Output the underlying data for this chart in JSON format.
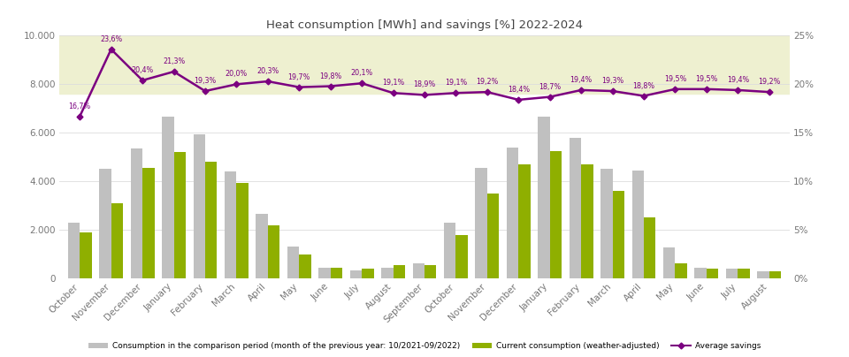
{
  "title": "Heat consumption [MWh] and savings [%] 2022-2024",
  "months": [
    "October",
    "November",
    "December",
    "January",
    "February",
    "March",
    "April",
    "May",
    "June",
    "July",
    "August",
    "September",
    "October",
    "November",
    "December",
    "January",
    "February",
    "March",
    "April",
    "May",
    "June",
    "July",
    "August"
  ],
  "comparison": [
    2300,
    4500,
    5350,
    6650,
    5950,
    4400,
    2650,
    1300,
    450,
    320,
    430,
    620,
    2280,
    4550,
    5400,
    6650,
    5800,
    4500,
    4450,
    1280,
    450,
    400,
    310
  ],
  "current": [
    1900,
    3100,
    4550,
    5200,
    4800,
    3950,
    2200,
    980,
    430,
    420,
    550,
    540,
    1800,
    3500,
    4700,
    5250,
    4700,
    3600,
    2500,
    640,
    410,
    390,
    300
  ],
  "savings_pct": [
    16.7,
    23.6,
    20.4,
    21.3,
    19.3,
    20.0,
    20.3,
    19.7,
    19.8,
    20.1,
    19.1,
    18.9,
    19.1,
    19.2,
    18.4,
    18.7,
    19.4,
    19.3,
    18.8,
    19.5,
    19.5,
    19.4,
    19.2
  ],
  "bar_color_comparison": "#c0c0c0",
  "bar_color_current": "#8faf00",
  "line_color": "#7b0080",
  "shade_color": "#eef0d0",
  "ylim_left": [
    0,
    10000
  ],
  "ylim_right": [
    0,
    25
  ],
  "legend_comparison": "Consumption in the comparison period (month of the previous year: 10/2021-09/2022)",
  "legend_current": "Current consumption (weather-adjusted)",
  "legend_savings": "Average savings",
  "title_color": "#555555",
  "tick_color": "#777777"
}
